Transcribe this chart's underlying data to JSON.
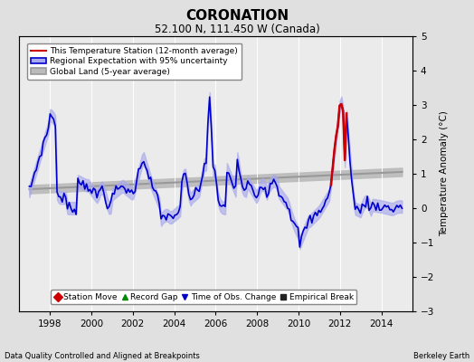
{
  "title": "CORONATION",
  "subtitle": "52.100 N, 111.450 W (Canada)",
  "ylabel": "Temperature Anomaly (°C)",
  "xlabel_bottom": "Data Quality Controlled and Aligned at Breakpoints",
  "xlabel_right": "Berkeley Earth",
  "ylim": [
    -3,
    5
  ],
  "xlim": [
    1996.5,
    2015.5
  ],
  "xticks": [
    1998,
    2000,
    2002,
    2004,
    2006,
    2008,
    2010,
    2012,
    2014
  ],
  "yticks": [
    -3,
    -2,
    -1,
    0,
    1,
    2,
    3,
    4,
    5
  ],
  "bg_color": "#e0e0e0",
  "plot_bg_color": "#ebebeb",
  "grid_color": "#ffffff",
  "regional_color": "#0000cc",
  "regional_fill_color": "#aaaaee",
  "station_color": "#cc0000",
  "global_color": "#999999",
  "global_fill_color": "#bbbbbb",
  "legend_items": [
    {
      "label": "This Temperature Station (12-month average)",
      "color": "#cc0000",
      "lw": 1.5
    },
    {
      "label": "Regional Expectation with 95% uncertainty",
      "color": "#0000cc",
      "fill": "#aaaaee"
    },
    {
      "label": "Global Land (5-year average)",
      "color": "#999999",
      "fill": "#bbbbbb"
    }
  ],
  "marker_legend": [
    {
      "label": "Station Move",
      "marker": "D",
      "color": "#cc0000"
    },
    {
      "label": "Record Gap",
      "marker": "^",
      "color": "#008800"
    },
    {
      "label": "Time of Obs. Change",
      "marker": "v",
      "color": "#0000cc"
    },
    {
      "label": "Empirical Break",
      "marker": "s",
      "color": "#222222"
    }
  ]
}
